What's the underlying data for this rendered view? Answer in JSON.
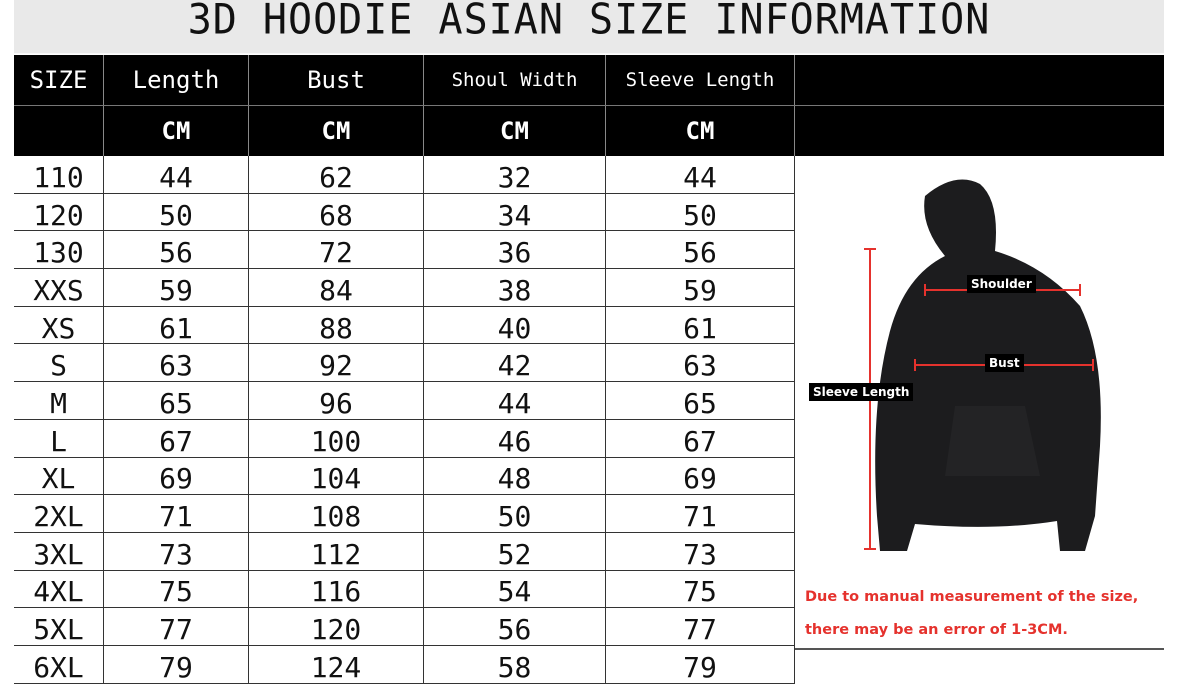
{
  "title": "3D HOODIE ASIAN SIZE INFORMATION",
  "columns": [
    "SIZE",
    "Length",
    "Bust",
    "Shoul Width",
    "Sleeve Length"
  ],
  "units": [
    "",
    "CM",
    "CM",
    "CM",
    "CM"
  ],
  "rows": [
    [
      "110",
      "44",
      "62",
      "32",
      "44"
    ],
    [
      "120",
      "50",
      "68",
      "34",
      "50"
    ],
    [
      "130",
      "56",
      "72",
      "36",
      "56"
    ],
    [
      "XXS",
      "59",
      "84",
      "38",
      "59"
    ],
    [
      "XS",
      "61",
      "88",
      "40",
      "61"
    ],
    [
      "S",
      "63",
      "92",
      "42",
      "63"
    ],
    [
      "M",
      "65",
      "96",
      "44",
      "65"
    ],
    [
      "L",
      "67",
      "100",
      "46",
      "67"
    ],
    [
      "XL",
      "69",
      "104",
      "48",
      "69"
    ],
    [
      "2XL",
      "71",
      "108",
      "50",
      "71"
    ],
    [
      "3XL",
      "73",
      "112",
      "52",
      "73"
    ],
    [
      "4XL",
      "75",
      "116",
      "54",
      "75"
    ],
    [
      "5XL",
      "77",
      "120",
      "56",
      "77"
    ],
    [
      "6XL",
      "79",
      "124",
      "58",
      "79"
    ]
  ],
  "diagram": {
    "shoulder_label": "Shoulder",
    "bust_label": "Bust",
    "sleeve_label": "Sleeve Length",
    "note_line1": "Due to manual measurement of the size,",
    "note_line2": "there may be an error of 1-3CM.",
    "measure_color": "#e5322d"
  }
}
